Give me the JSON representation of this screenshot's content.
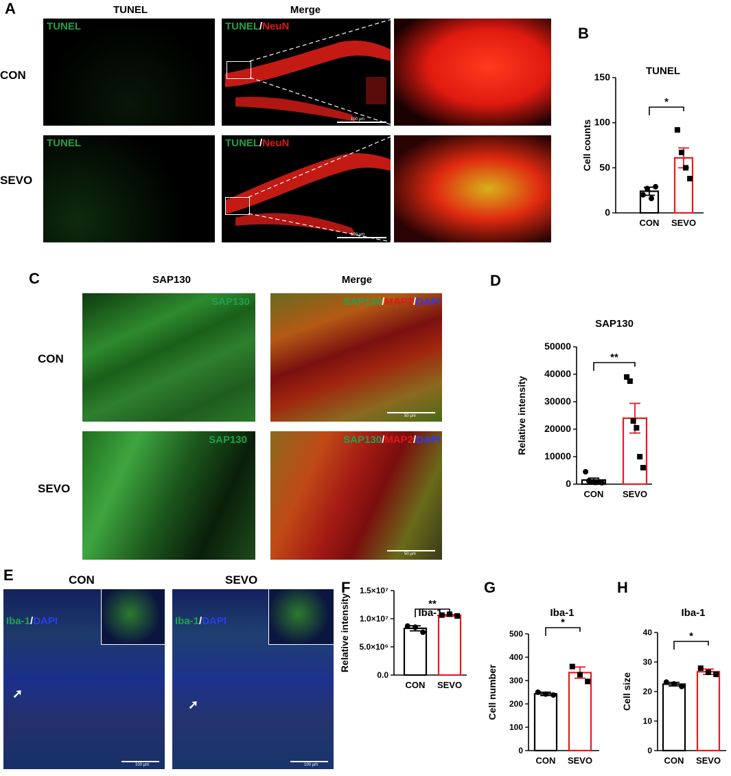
{
  "panels": {
    "A": {
      "label": "A",
      "col_titles": [
        "TUNEL",
        "Merge"
      ],
      "rows": [
        "CON",
        "SEVO"
      ],
      "single_channel": "TUNEL",
      "merge_channels": [
        "TUNEL",
        "/",
        "NeuN"
      ],
      "scale_bar": "100 μm"
    },
    "C": {
      "label": "C",
      "col_titles": [
        "SAP130",
        "Merge"
      ],
      "rows": [
        "CON",
        "SEVO"
      ],
      "single_channel": "SAP130",
      "merge_channels": [
        "SAP130",
        "/",
        "MAP2",
        "/",
        "DAPI"
      ],
      "scale_bar": "50 μm"
    },
    "E": {
      "label": "E",
      "col_titles": [
        "CON",
        "SEVO"
      ],
      "channels": [
        "Iba-1",
        "/",
        "DAPI"
      ],
      "scale_bar": "100 μm"
    }
  },
  "colors": {
    "con": "#000000",
    "sevo": "#e8191d",
    "green": "#1fa24a",
    "red": "#e01818",
    "blue": "#2a3df0"
  },
  "chart_data": [
    {
      "panel": "B",
      "type": "bar",
      "title": "TUNEL",
      "ylabel": "Cell  counts",
      "categories": [
        "CON",
        "SEVO"
      ],
      "means": [
        24,
        61
      ],
      "sem": [
        4.5,
        11
      ],
      "ylim": [
        0,
        150
      ],
      "yticks": [
        "0",
        "50",
        "100",
        "150"
      ],
      "ytick_values": [
        0,
        50,
        100,
        150
      ],
      "points": [
        [
          20,
          27,
          16,
          29
        ],
        [
          92,
          67,
          50,
          38
        ]
      ],
      "markers": [
        "circle",
        "square"
      ],
      "significance": "*"
    },
    {
      "panel": "D",
      "type": "bar",
      "title": "SAP130",
      "ylabel": "Relative intensity",
      "categories": [
        "CON",
        "SEVO"
      ],
      "means": [
        1500,
        24000
      ],
      "sem": [
        700,
        5400
      ],
      "ylim": [
        0,
        50000
      ],
      "yticks": [
        "0",
        "10000",
        "20000",
        "30000",
        "40000",
        "50000"
      ],
      "ytick_values": [
        0,
        10000,
        20000,
        30000,
        40000,
        50000
      ],
      "points": [
        [
          4500,
          1200,
          800,
          600,
          900,
          500
        ],
        [
          39000,
          37500,
          23000,
          20500,
          10000,
          6000
        ]
      ],
      "markers": [
        "circle",
        "square"
      ],
      "significance": "**"
    },
    {
      "panel": "F",
      "type": "bar",
      "title": "Iba-1",
      "ylabel": "Relative intensity",
      "categories": [
        "CON",
        "SEVO"
      ],
      "means": [
        8300000,
        10600000
      ],
      "sem": [
        450000,
        150000
      ],
      "ylim": [
        0,
        15000000
      ],
      "yticks": [
        "0.0",
        "5.0×10⁶",
        "1.0×10⁷",
        "1.5×10⁷"
      ],
      "ytick_values": [
        0,
        5000000,
        10000000,
        15000000
      ],
      "points": [
        [
          8700000,
          8500000,
          7600000
        ],
        [
          10650000,
          10800000,
          10500000
        ]
      ],
      "markers": [
        "circle",
        "square"
      ],
      "significance": "**"
    },
    {
      "panel": "G",
      "type": "bar",
      "title": "Iba-1",
      "ylabel": "Cell  number",
      "categories": [
        "CON",
        "SEVO"
      ],
      "means": [
        243,
        334
      ],
      "sem": [
        7,
        24
      ],
      "ylim": [
        0,
        500
      ],
      "yticks": [
        "0",
        "100",
        "200",
        "300",
        "400",
        "500"
      ],
      "ytick_values": [
        0,
        100,
        200,
        300,
        400,
        500
      ],
      "points": [
        [
          250,
          242,
          238
        ],
        [
          360,
          325,
          296
        ]
      ],
      "markers": [
        "circle",
        "square"
      ],
      "significance": "*"
    },
    {
      "panel": "H",
      "type": "bar",
      "title": "Iba-1",
      "ylabel": "Cell size",
      "categories": [
        "CON",
        "SEVO"
      ],
      "means": [
        22.5,
        26.7
      ],
      "sem": [
        0.6,
        0.9
      ],
      "ylim": [
        0,
        40
      ],
      "yticks": [
        "0",
        "10",
        "20",
        "30",
        "40"
      ],
      "ytick_values": [
        0,
        10,
        20,
        30,
        40
      ],
      "points": [
        [
          23.2,
          22.6,
          21.7
        ],
        [
          27.9,
          26.5,
          25.8
        ]
      ],
      "markers": [
        "circle",
        "square"
      ],
      "significance": "*"
    }
  ]
}
